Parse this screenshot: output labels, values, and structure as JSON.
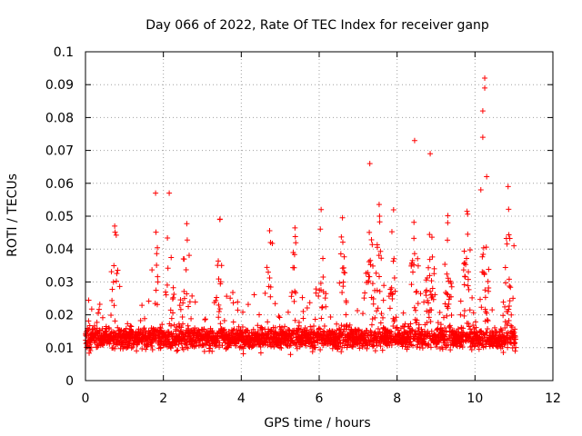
{
  "chart_data": {
    "type": "scatter",
    "title": "Day 066 of 2022, Rate Of TEC Index for receiver ganp",
    "xlabel": "GPS time / hours",
    "ylabel": "ROTI / TECUs",
    "xlim": [
      0,
      12
    ],
    "ylim": [
      0,
      0.1
    ],
    "xticks": [
      "0",
      "2",
      "4",
      "6",
      "8",
      "10",
      "12"
    ],
    "yticks": [
      "0",
      "0.01",
      "0.02",
      "0.03",
      "0.04",
      "0.05",
      "0.06",
      "0.07",
      "0.08",
      "0.09",
      "0.1"
    ],
    "grid": true,
    "marker": "+",
    "series": [
      {
        "name": "ROTI",
        "color": "#ff0000",
        "x_range": [
          0,
          11.05
        ],
        "baseline_band": [
          0.005,
          0.025
        ],
        "typical_value": 0.013,
        "notable_points": [
          {
            "x": 0.75,
            "y": 0.047
          },
          {
            "x": 1.8,
            "y": 0.057
          },
          {
            "x": 2.15,
            "y": 0.057
          },
          {
            "x": 3.45,
            "y": 0.049
          },
          {
            "x": 4.75,
            "y": 0.042
          },
          {
            "x": 6.05,
            "y": 0.052
          },
          {
            "x": 7.3,
            "y": 0.066
          },
          {
            "x": 7.55,
            "y": 0.05
          },
          {
            "x": 8.45,
            "y": 0.073
          },
          {
            "x": 8.85,
            "y": 0.069
          },
          {
            "x": 9.3,
            "y": 0.048
          },
          {
            "x": 10.25,
            "y": 0.092
          },
          {
            "x": 10.25,
            "y": 0.089
          },
          {
            "x": 10.2,
            "y": 0.082
          },
          {
            "x": 10.2,
            "y": 0.074
          },
          {
            "x": 10.3,
            "y": 0.062
          },
          {
            "x": 10.15,
            "y": 0.058
          },
          {
            "x": 10.85,
            "y": 0.059
          },
          {
            "x": 11.0,
            "y": 0.041
          }
        ]
      }
    ]
  }
}
